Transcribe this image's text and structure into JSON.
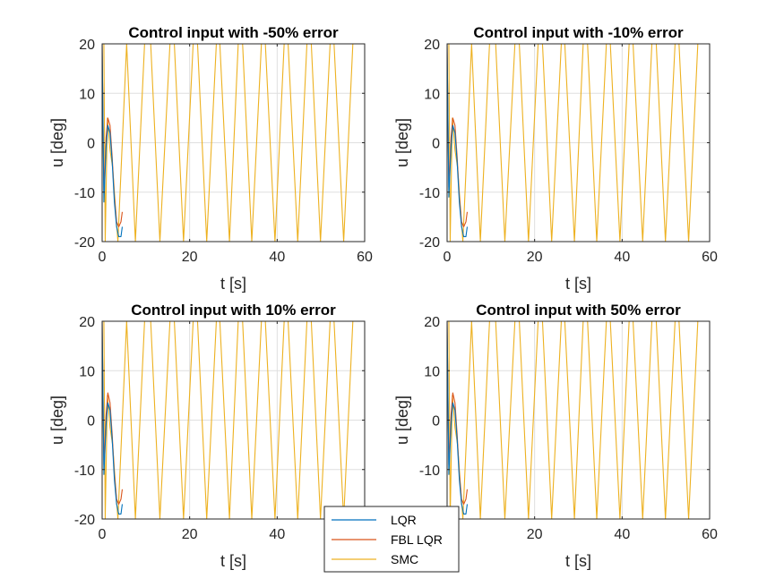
{
  "figure": {
    "colors": {
      "LQR": "#0072BD",
      "FBL LQR": "#D95319",
      "SMC": "#EDB120",
      "grid": "#DFDFDF",
      "axis": "#262626"
    },
    "legend": {
      "placement": "bottom-center",
      "entries": [
        {
          "name": "LQR",
          "color": "#0072BD"
        },
        {
          "name": "FBL LQR",
          "color": "#D95319"
        },
        {
          "name": "SMC",
          "color": "#EDB120"
        }
      ]
    }
  },
  "chart_data": [
    {
      "type": "line",
      "title": "Control input with -50% error",
      "xlabel": "t [s]",
      "ylabel": "u [deg]",
      "xlim": [
        0,
        60
      ],
      "ylim": [
        -20,
        20
      ],
      "xticks": [
        0,
        20,
        40,
        60
      ],
      "yticks": [
        -20,
        -10,
        0,
        10,
        20
      ],
      "grid": true,
      "series": [
        {
          "name": "LQR",
          "color": "#0072BD",
          "x": [
            0,
            0.4,
            0.9,
            1.3,
            1.8,
            2.3,
            2.8,
            3.3,
            3.8,
            4.3,
            4.6
          ],
          "y": [
            20,
            -12,
            -1,
            3.5,
            2,
            -4,
            -12,
            -17,
            -19,
            -19,
            -17
          ]
        },
        {
          "name": "FBL LQR",
          "color": "#D95319",
          "x": [
            0,
            0.4,
            0.9,
            1.3,
            1.8,
            2.3,
            2.8,
            3.3,
            3.8,
            4.3,
            4.6
          ],
          "y": [
            20,
            -10,
            1,
            5,
            3.5,
            -3,
            -11,
            -16,
            -17,
            -16,
            -14
          ]
        },
        {
          "name": "SMC",
          "color": "#EDB120",
          "x": [
            0,
            0.4,
            0.7,
            1.2,
            1.8,
            2.4,
            3.6,
            5.6,
            7.6,
            9.7,
            11.1,
            13.2,
            15.5,
            16.5,
            18.6,
            20.8,
            21.8,
            23.9,
            26.1,
            26.9,
            29.1,
            31.1,
            32.1,
            34.2,
            36.4,
            37.3,
            39.5,
            41.6,
            42.5,
            44.7,
            46.8,
            47.8,
            49.9,
            52.1,
            53.0,
            55.2,
            57.3,
            58.2,
            60.0
          ],
          "y": [
            20,
            20,
            -20,
            5,
            -1.5,
            -5,
            -20,
            20,
            -20,
            20,
            20,
            -20,
            20,
            20,
            -20,
            20,
            20,
            -20,
            20,
            20,
            -20,
            20,
            20,
            -20,
            20,
            20,
            -20,
            20,
            20,
            -20,
            20,
            20,
            -20,
            20,
            20,
            -20,
            20,
            20,
            20
          ]
        }
      ]
    },
    {
      "type": "line",
      "title": "Control input with -10% error",
      "xlabel": "t [s]",
      "ylabel": "u [deg]",
      "xlim": [
        0,
        60
      ],
      "ylim": [
        -20,
        20
      ],
      "xticks": [
        0,
        20,
        40,
        60
      ],
      "yticks": [
        -20,
        -10,
        0,
        10,
        20
      ],
      "grid": true,
      "series": [
        {
          "name": "LQR",
          "color": "#0072BD",
          "x": [
            0,
            0.4,
            0.9,
            1.3,
            1.8,
            2.3,
            2.8,
            3.3,
            3.8,
            4.3,
            4.6
          ],
          "y": [
            20,
            -11,
            -1,
            3.5,
            2,
            -4,
            -12,
            -17,
            -19,
            -19,
            -17
          ]
        },
        {
          "name": "FBL LQR",
          "color": "#D95319",
          "x": [
            0,
            0.4,
            0.9,
            1.3,
            1.8,
            2.3,
            2.8,
            3.3,
            3.8,
            4.3,
            4.6
          ],
          "y": [
            20,
            -9,
            1,
            5,
            3.5,
            -3,
            -11,
            -16,
            -17,
            -16,
            -14
          ]
        },
        {
          "name": "SMC",
          "color": "#EDB120",
          "x": [
            0,
            0.4,
            0.7,
            1.2,
            1.8,
            2.4,
            3.6,
            5.6,
            7.6,
            9.7,
            11.1,
            13.2,
            15.5,
            16.5,
            18.6,
            20.8,
            21.8,
            23.9,
            26.1,
            26.9,
            29.1,
            31.1,
            32.1,
            34.2,
            36.4,
            37.3,
            39.5,
            41.6,
            42.5,
            44.7,
            46.8,
            47.8,
            49.9,
            52.1,
            53.0,
            55.2,
            57.3,
            58.2,
            60.0
          ],
          "y": [
            20,
            20,
            -20,
            5,
            -1.5,
            -5,
            -20,
            20,
            -20,
            20,
            20,
            -20,
            20,
            20,
            -20,
            20,
            20,
            -20,
            20,
            20,
            -20,
            20,
            20,
            -20,
            20,
            20,
            -20,
            20,
            20,
            -20,
            20,
            20,
            -20,
            20,
            20,
            -20,
            20,
            20,
            20
          ]
        }
      ]
    },
    {
      "type": "line",
      "title": "Control input with 10% error",
      "xlabel": "t [s]",
      "ylabel": "u [deg]",
      "xlim": [
        0,
        60
      ],
      "ylim": [
        -20,
        20
      ],
      "xticks": [
        0,
        20,
        40,
        60
      ],
      "yticks": [
        -20,
        -10,
        0,
        10,
        20
      ],
      "grid": true,
      "series": [
        {
          "name": "LQR",
          "color": "#0072BD",
          "x": [
            0,
            0.4,
            0.9,
            1.3,
            1.8,
            2.3,
            2.8,
            3.3,
            3.8,
            4.3,
            4.6
          ],
          "y": [
            20,
            -11,
            -1,
            3.5,
            2,
            -4,
            -12,
            -17,
            -19,
            -19,
            -17
          ]
        },
        {
          "name": "FBL LQR",
          "color": "#D95319",
          "x": [
            0,
            0.4,
            0.9,
            1.3,
            1.8,
            2.3,
            2.8,
            3.3,
            3.8,
            4.3,
            4.6
          ],
          "y": [
            20,
            -9,
            1,
            5.5,
            3.5,
            -3,
            -11,
            -16,
            -17,
            -16,
            -14
          ]
        },
        {
          "name": "SMC",
          "color": "#EDB120",
          "x": [
            0,
            0.4,
            0.7,
            1.2,
            1.8,
            2.4,
            3.6,
            5.6,
            7.6,
            9.7,
            11.1,
            13.2,
            15.5,
            16.5,
            18.6,
            20.8,
            21.8,
            23.9,
            26.1,
            26.9,
            29.1,
            31.1,
            32.1,
            34.2,
            36.4,
            37.3,
            39.5,
            41.6,
            42.5,
            44.7,
            46.8,
            47.8,
            49.9,
            52.1,
            53.0,
            55.2,
            57.3,
            58.2,
            60.0
          ],
          "y": [
            20,
            20,
            -20,
            5,
            -1.5,
            -5,
            -20,
            20,
            -20,
            20,
            20,
            -20,
            20,
            20,
            -20,
            20,
            20,
            -20,
            20,
            20,
            -20,
            20,
            20,
            -20,
            20,
            20,
            -20,
            20,
            20,
            -20,
            20,
            20,
            -20,
            20,
            20,
            -20,
            20,
            20,
            20
          ]
        }
      ]
    },
    {
      "type": "line",
      "title": "Control input with 50% error",
      "xlabel": "t [s]",
      "ylabel": "u [deg]",
      "xlim": [
        0,
        60
      ],
      "ylim": [
        -20,
        20
      ],
      "xticks": [
        0,
        20,
        40,
        60
      ],
      "yticks": [
        -20,
        -10,
        0,
        10,
        20
      ],
      "grid": true,
      "series": [
        {
          "name": "LQR",
          "color": "#0072BD",
          "x": [
            0,
            0.4,
            0.9,
            1.3,
            1.8,
            2.3,
            2.8,
            3.3,
            3.8,
            4.3,
            4.6
          ],
          "y": [
            20,
            -11,
            -1,
            3.5,
            2,
            -4,
            -12,
            -17,
            -19,
            -19,
            -17
          ]
        },
        {
          "name": "FBL LQR",
          "color": "#D95319",
          "x": [
            0,
            0.4,
            0.9,
            1.3,
            1.8,
            2.3,
            2.8,
            3.3,
            3.8,
            4.3,
            4.6
          ],
          "y": [
            20,
            -9,
            1,
            5.5,
            3.5,
            -3,
            -11,
            -16,
            -17,
            -16,
            -14
          ]
        },
        {
          "name": "SMC",
          "color": "#EDB120",
          "x": [
            0,
            0.4,
            0.7,
            1.2,
            1.8,
            2.4,
            3.6,
            5.6,
            7.6,
            9.7,
            11.1,
            13.2,
            15.5,
            16.5,
            18.6,
            20.8,
            21.8,
            23.9,
            26.1,
            26.9,
            29.1,
            31.1,
            32.1,
            34.2,
            36.4,
            37.3,
            39.5,
            41.6,
            42.5,
            44.7,
            46.8,
            47.8,
            49.9,
            52.1,
            53.0,
            55.2,
            57.3,
            58.2,
            60.0
          ],
          "y": [
            20,
            20,
            -20,
            5,
            -1.5,
            -5,
            -20,
            20,
            -20,
            20,
            20,
            -20,
            20,
            20,
            -20,
            20,
            20,
            -20,
            20,
            20,
            -20,
            20,
            20,
            -20,
            20,
            20,
            -20,
            20,
            20,
            -20,
            20,
            20,
            -20,
            20,
            20,
            -20,
            20,
            20,
            20
          ]
        }
      ]
    }
  ]
}
